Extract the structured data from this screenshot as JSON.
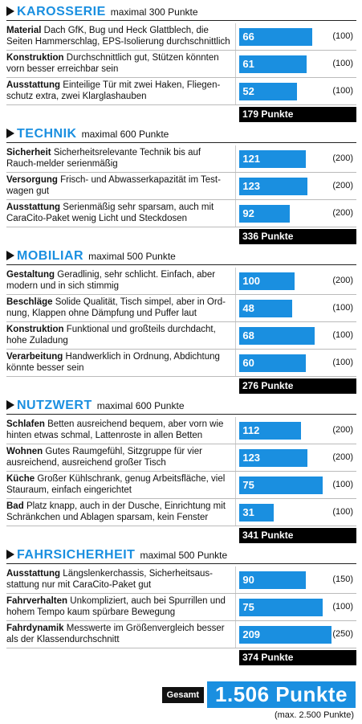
{
  "sections": [
    {
      "name": "KAROSSERIE",
      "max_label": "maximal 300 Punkte",
      "rows": [
        {
          "label": "Material",
          "text": "Dach GfK, Bug und Heck Glattblech, die Seiten Hammerschlag, EPS-Isolierung durchschnittlich",
          "score": 66,
          "max": 100,
          "max_text": "(100)"
        },
        {
          "label": "Konstruktion",
          "text": "Durchschnittlich gut, Stützen könnten vorn besser erreichbar sein",
          "score": 61,
          "max": 100,
          "max_text": "(100)"
        },
        {
          "label": "Ausstattung",
          "text": "Einteilige Tür mit zwei Haken, Fliegen-schutz extra, zwei Klarglashauben",
          "score": 52,
          "max": 100,
          "max_text": "(100)"
        }
      ],
      "total": "179 Punkte"
    },
    {
      "name": "TECHNIK",
      "max_label": "maximal 600 Punkte",
      "rows": [
        {
          "label": "Sicherheit",
          "text": "Sicherheitsrelevante Technik bis auf Rauch-melder serienmäßig",
          "score": 121,
          "max": 200,
          "max_text": "(200)"
        },
        {
          "label": "Versorgung",
          "text": "Frisch- und Abwasserkapazität im Test-wagen gut",
          "score": 123,
          "max": 200,
          "max_text": "(200)"
        },
        {
          "label": "Ausstattung",
          "text": "Serienmäßig sehr sparsam, auch mit CaraCito-Paket wenig Licht und Steckdosen",
          "score": 92,
          "max": 200,
          "max_text": "(200)"
        }
      ],
      "total": "336 Punkte"
    },
    {
      "name": "MOBILIAR",
      "max_label": "maximal 500 Punkte",
      "rows": [
        {
          "label": "Gestaltung",
          "text": "Geradlinig, sehr schlicht. Einfach, aber modern und in sich stimmig",
          "score": 100,
          "max": 200,
          "max_text": "(200)"
        },
        {
          "label": "Beschläge",
          "text": "Solide Qualität, Tisch simpel, aber in Ord-nung, Klappen ohne Dämpfung und Puffer laut",
          "score": 48,
          "max": 100,
          "max_text": "(100)"
        },
        {
          "label": "Konstruktion",
          "text": "Funktional und großteils durchdacht, hohe Zuladung",
          "score": 68,
          "max": 100,
          "max_text": "(100)"
        },
        {
          "label": "Verarbeitung",
          "text": "Handwerklich in Ordnung, Abdichtung könnte besser sein",
          "score": 60,
          "max": 100,
          "max_text": "(100)"
        }
      ],
      "total": "276 Punkte"
    },
    {
      "name": "NUTZWERT",
      "max_label": "maximal 600 Punkte",
      "rows": [
        {
          "label": "Schlafen",
          "text": "Betten ausreichend bequem, aber vorn wie hinten etwas schmal, Lattenroste in allen Betten",
          "score": 112,
          "max": 200,
          "max_text": "(200)"
        },
        {
          "label": "Wohnen",
          "text": "Gutes Raumgefühl, Sitzgruppe für vier ausreichend, ausreichend großer Tisch",
          "score": 123,
          "max": 200,
          "max_text": "(200)"
        },
        {
          "label": "Küche",
          "text": "Großer Kühlschrank, genug Arbeitsfläche, viel Stauraum, einfach eingerichtet",
          "score": 75,
          "max": 100,
          "max_text": "(100)"
        },
        {
          "label": "Bad",
          "text": "Platz knapp, auch in der Dusche, Einrichtung mit Schränkchen und Ablagen sparsam, kein Fenster",
          "score": 31,
          "max": 100,
          "max_text": "(100)"
        }
      ],
      "total": "341 Punkte"
    },
    {
      "name": "FAHRSICHERHEIT",
      "max_label": "maximal 500 Punkte",
      "rows": [
        {
          "label": "Ausstattung",
          "text": "Längslenkerchassis, Sicherheitsaus-stattung nur mit CaraCito-Paket gut",
          "score": 90,
          "max": 150,
          "max_text": "(150)"
        },
        {
          "label": "Fahrverhalten",
          "text": "Unkompliziert, auch bei Spurrillen und hohem Tempo kaum spürbare Bewegung",
          "score": 75,
          "max": 100,
          "max_text": "(100)"
        },
        {
          "label": "Fahrdynamik",
          "text": "Messwerte im Größenvergleich besser als der Klassendurchschnitt",
          "score": 209,
          "max": 250,
          "max_text": "(250)"
        }
      ],
      "total": "374 Punkte"
    }
  ],
  "gesamt_label": "Gesamt",
  "gesamt_value": "1.506 Punkte",
  "gesamt_max": "(max. 2.500 Punkte)",
  "colors": {
    "accent": "#1a8fe0",
    "total_bg": "#000000"
  }
}
